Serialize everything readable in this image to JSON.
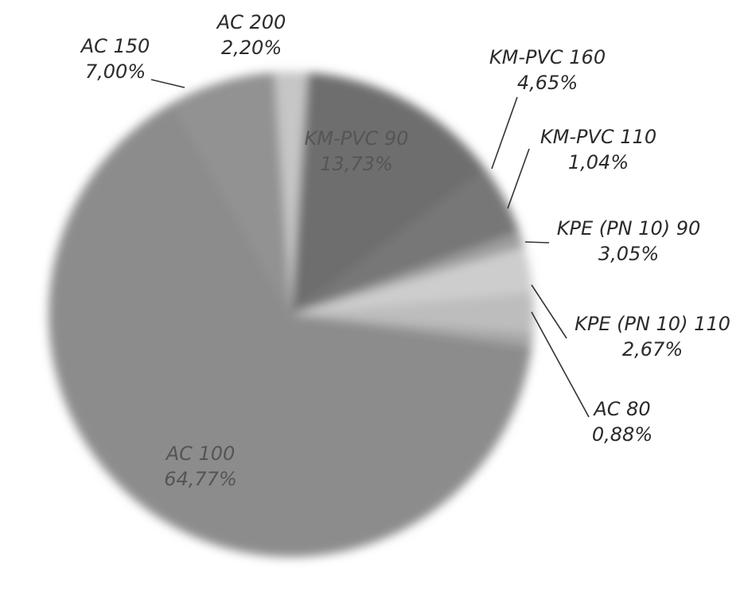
{
  "chart_data": {
    "type": "pie",
    "title": "",
    "slices": [
      {
        "label": "AC 100",
        "value": 64.77,
        "value_text": "64,77%",
        "color": "#8c8c8c"
      },
      {
        "label": "AC 150",
        "value": 7.0,
        "value_text": "7,00%",
        "color": "#929292"
      },
      {
        "label": "AC 200",
        "value": 2.2,
        "value_text": "2,20%",
        "color": "#c6c6c6"
      },
      {
        "label": "KM-PVC 90",
        "value": 13.73,
        "value_text": "13,73%",
        "color": "#6e6e6e"
      },
      {
        "label": "KM-PVC 160",
        "value": 4.65,
        "value_text": "4,65%",
        "color": "#777777"
      },
      {
        "label": "KM-PVC 110",
        "value": 1.04,
        "value_text": "1,04%",
        "color": "#9e9e9e"
      },
      {
        "label": "KPE (PN 10) 90",
        "value": 3.05,
        "value_text": "3,05%",
        "color": "#cdcdcd"
      },
      {
        "label": "KPE (PN 10) 110",
        "value": 2.67,
        "value_text": "2,67%",
        "color": "#bdbdbd"
      },
      {
        "label": "AC 80",
        "value": 0.88,
        "value_text": "0,88%",
        "color": "#a8a8a8"
      }
    ]
  }
}
